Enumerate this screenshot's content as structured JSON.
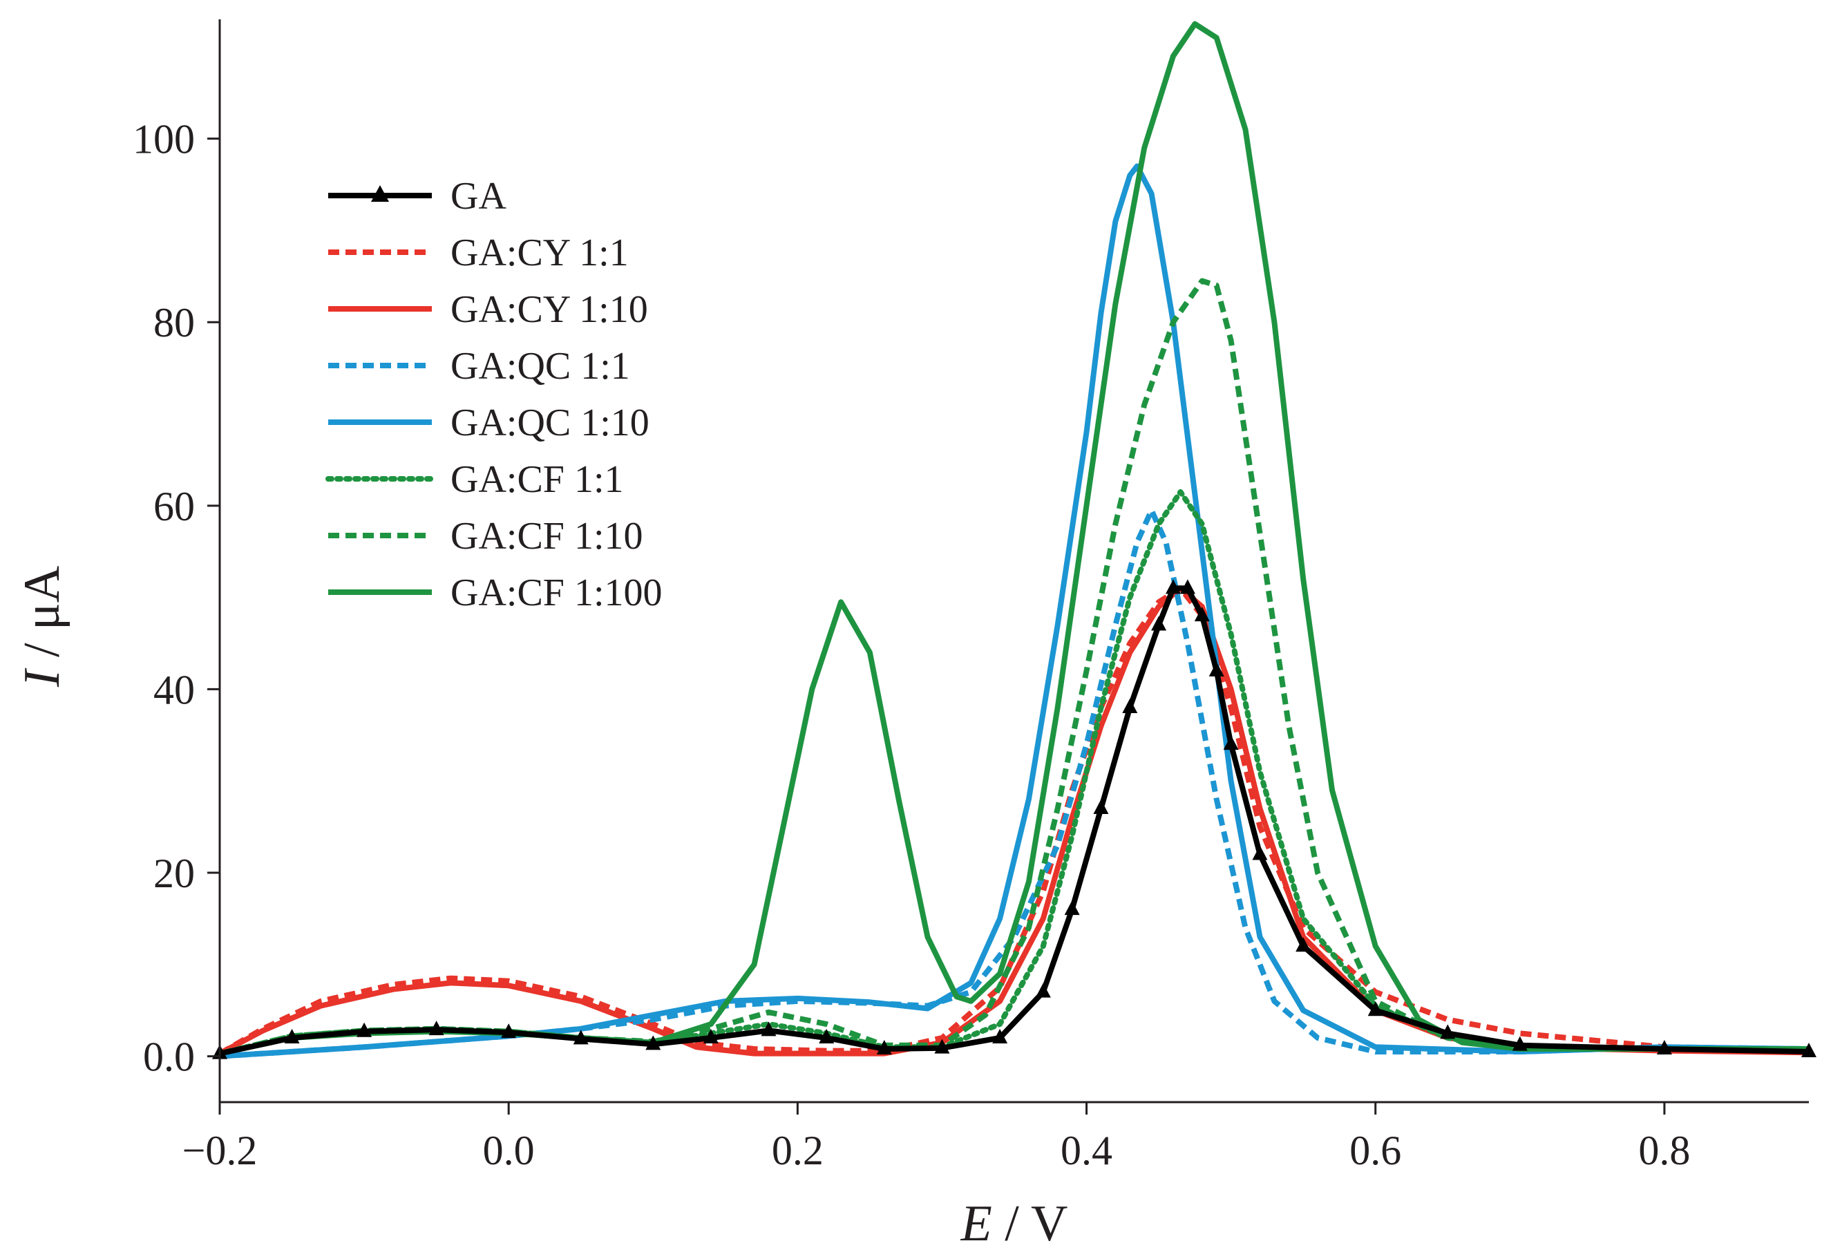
{
  "chart_data": {
    "type": "line",
    "title": "",
    "xlabel_var": "E",
    "xlabel_unit": " / V",
    "ylabel_var": "I",
    "ylabel_unit": " / μA",
    "xlim": [
      -0.2,
      0.9
    ],
    "ylim": [
      -5,
      113
    ],
    "x_ticks": [
      -0.2,
      0.0,
      0.2,
      0.4,
      0.6,
      0.8
    ],
    "x_tick_labels": [
      "−0.2",
      "0.0",
      "0.2",
      "0.4",
      "0.6",
      "0.8"
    ],
    "y_ticks": [
      0,
      20,
      40,
      60,
      80,
      100
    ],
    "y_tick_labels": [
      "0.0",
      "20",
      "40",
      "60",
      "80",
      "100"
    ],
    "grid": false,
    "legend_position": "top-left",
    "series": [
      {
        "name": "GA",
        "color": "#000000",
        "style": "solid",
        "marker": "triangle",
        "points": [
          [
            -0.2,
            0.3
          ],
          [
            -0.15,
            2.0
          ],
          [
            -0.1,
            2.7
          ],
          [
            -0.05,
            2.9
          ],
          [
            0.0,
            2.6
          ],
          [
            0.05,
            1.9
          ],
          [
            0.1,
            1.3
          ],
          [
            0.14,
            2.0
          ],
          [
            0.18,
            2.8
          ],
          [
            0.22,
            2.0
          ],
          [
            0.26,
            0.8
          ],
          [
            0.3,
            0.9
          ],
          [
            0.34,
            2.0
          ],
          [
            0.37,
            7.0
          ],
          [
            0.39,
            16.0
          ],
          [
            0.41,
            27.0
          ],
          [
            0.43,
            38.0
          ],
          [
            0.45,
            47.0
          ],
          [
            0.46,
            51.0
          ],
          [
            0.47,
            51.0
          ],
          [
            0.48,
            48.0
          ],
          [
            0.49,
            42.0
          ],
          [
            0.5,
            34.0
          ],
          [
            0.52,
            22.0
          ],
          [
            0.55,
            12.0
          ],
          [
            0.6,
            5.0
          ],
          [
            0.65,
            2.5
          ],
          [
            0.7,
            1.2
          ],
          [
            0.8,
            0.8
          ],
          [
            0.9,
            0.5
          ]
        ]
      },
      {
        "name": "GA:CY 1:1",
        "color": "#e8342a",
        "style": "dashed",
        "marker": "",
        "points": [
          [
            -0.2,
            0.3
          ],
          [
            -0.17,
            3.0
          ],
          [
            -0.13,
            6.0
          ],
          [
            -0.08,
            7.8
          ],
          [
            -0.04,
            8.5
          ],
          [
            0.0,
            8.2
          ],
          [
            0.05,
            6.5
          ],
          [
            0.1,
            3.5
          ],
          [
            0.13,
            1.5
          ],
          [
            0.17,
            0.8
          ],
          [
            0.22,
            0.6
          ],
          [
            0.26,
            0.6
          ],
          [
            0.3,
            2.0
          ],
          [
            0.34,
            7.5
          ],
          [
            0.37,
            18.0
          ],
          [
            0.39,
            29.0
          ],
          [
            0.41,
            38.0
          ],
          [
            0.43,
            45.0
          ],
          [
            0.45,
            49.5
          ],
          [
            0.465,
            51.0
          ],
          [
            0.48,
            48.0
          ],
          [
            0.5,
            38.0
          ],
          [
            0.52,
            25.0
          ],
          [
            0.55,
            14.0
          ],
          [
            0.6,
            7.0
          ],
          [
            0.65,
            4.0
          ],
          [
            0.7,
            2.5
          ],
          [
            0.8,
            1.0
          ],
          [
            0.9,
            0.5
          ]
        ]
      },
      {
        "name": "GA:CY 1:10",
        "color": "#e8342a",
        "style": "solid",
        "marker": "",
        "points": [
          [
            -0.2,
            0.3
          ],
          [
            -0.17,
            2.8
          ],
          [
            -0.13,
            5.5
          ],
          [
            -0.08,
            7.3
          ],
          [
            -0.04,
            8.0
          ],
          [
            0.0,
            7.7
          ],
          [
            0.05,
            6.0
          ],
          [
            0.1,
            3.0
          ],
          [
            0.13,
            1.0
          ],
          [
            0.17,
            0.3
          ],
          [
            0.22,
            0.3
          ],
          [
            0.26,
            0.3
          ],
          [
            0.3,
            1.5
          ],
          [
            0.34,
            6.0
          ],
          [
            0.37,
            15.0
          ],
          [
            0.39,
            26.0
          ],
          [
            0.41,
            36.0
          ],
          [
            0.43,
            44.0
          ],
          [
            0.45,
            49.0
          ],
          [
            0.465,
            51.0
          ],
          [
            0.48,
            49.0
          ],
          [
            0.5,
            40.0
          ],
          [
            0.52,
            27.0
          ],
          [
            0.55,
            13.0
          ],
          [
            0.6,
            5.0
          ],
          [
            0.65,
            2.0
          ],
          [
            0.7,
            1.0
          ],
          [
            0.8,
            0.6
          ],
          [
            0.9,
            0.4
          ]
        ]
      },
      {
        "name": "GA:QC 1:1",
        "color": "#1c95d3",
        "style": "dashed",
        "marker": "",
        "points": [
          [
            -0.2,
            0.0
          ],
          [
            -0.1,
            1.0
          ],
          [
            0.0,
            2.2
          ],
          [
            0.05,
            3.0
          ],
          [
            0.1,
            4.0
          ],
          [
            0.15,
            5.5
          ],
          [
            0.2,
            6.0
          ],
          [
            0.25,
            5.8
          ],
          [
            0.29,
            5.5
          ],
          [
            0.32,
            7.0
          ],
          [
            0.35,
            13.0
          ],
          [
            0.38,
            23.0
          ],
          [
            0.4,
            34.0
          ],
          [
            0.42,
            47.0
          ],
          [
            0.435,
            56.0
          ],
          [
            0.445,
            59.5
          ],
          [
            0.455,
            56.0
          ],
          [
            0.47,
            45.0
          ],
          [
            0.49,
            28.0
          ],
          [
            0.51,
            14.0
          ],
          [
            0.53,
            6.0
          ],
          [
            0.56,
            2.0
          ],
          [
            0.6,
            0.5
          ],
          [
            0.7,
            0.5
          ],
          [
            0.8,
            1.0
          ],
          [
            0.9,
            0.8
          ]
        ]
      },
      {
        "name": "GA:QC 1:10",
        "color": "#1c95d3",
        "style": "solid",
        "marker": "",
        "points": [
          [
            -0.2,
            0.0
          ],
          [
            -0.1,
            1.0
          ],
          [
            0.0,
            2.2
          ],
          [
            0.05,
            3.0
          ],
          [
            0.1,
            4.5
          ],
          [
            0.15,
            6.0
          ],
          [
            0.2,
            6.3
          ],
          [
            0.25,
            5.9
          ],
          [
            0.29,
            5.2
          ],
          [
            0.32,
            8.0
          ],
          [
            0.34,
            15.0
          ],
          [
            0.36,
            28.0
          ],
          [
            0.38,
            47.0
          ],
          [
            0.4,
            68.0
          ],
          [
            0.41,
            81.0
          ],
          [
            0.42,
            91.0
          ],
          [
            0.43,
            96.0
          ],
          [
            0.435,
            97.0
          ],
          [
            0.445,
            94.0
          ],
          [
            0.46,
            80.0
          ],
          [
            0.48,
            55.0
          ],
          [
            0.5,
            30.0
          ],
          [
            0.52,
            13.0
          ],
          [
            0.55,
            5.0
          ],
          [
            0.6,
            1.0
          ],
          [
            0.7,
            0.5
          ],
          [
            0.8,
            1.0
          ],
          [
            0.9,
            0.8
          ]
        ]
      },
      {
        "name": "GA:CF 1:1",
        "color": "#1e9441",
        "style": "dotted",
        "marker": "",
        "points": [
          [
            -0.2,
            0.3
          ],
          [
            -0.15,
            2.2
          ],
          [
            -0.1,
            2.8
          ],
          [
            -0.05,
            3.0
          ],
          [
            0.0,
            2.7
          ],
          [
            0.05,
            2.0
          ],
          [
            0.1,
            1.5
          ],
          [
            0.14,
            2.5
          ],
          [
            0.18,
            3.5
          ],
          [
            0.22,
            2.5
          ],
          [
            0.26,
            1.0
          ],
          [
            0.3,
            1.0
          ],
          [
            0.34,
            3.5
          ],
          [
            0.37,
            12.0
          ],
          [
            0.39,
            24.0
          ],
          [
            0.41,
            38.0
          ],
          [
            0.43,
            50.0
          ],
          [
            0.45,
            58.0
          ],
          [
            0.465,
            61.5
          ],
          [
            0.48,
            58.0
          ],
          [
            0.5,
            46.0
          ],
          [
            0.52,
            31.0
          ],
          [
            0.55,
            15.0
          ],
          [
            0.6,
            5.5
          ],
          [
            0.65,
            2.0
          ],
          [
            0.7,
            1.0
          ],
          [
            0.8,
            0.8
          ],
          [
            0.9,
            0.8
          ]
        ]
      },
      {
        "name": "GA:CF 1:10",
        "color": "#1e9441",
        "style": "dashed",
        "marker": "",
        "points": [
          [
            -0.2,
            0.3
          ],
          [
            -0.15,
            2.2
          ],
          [
            -0.1,
            2.8
          ],
          [
            -0.05,
            3.0
          ],
          [
            0.0,
            2.7
          ],
          [
            0.05,
            2.0
          ],
          [
            0.1,
            1.6
          ],
          [
            0.14,
            3.0
          ],
          [
            0.18,
            4.8
          ],
          [
            0.22,
            3.5
          ],
          [
            0.26,
            1.2
          ],
          [
            0.3,
            1.2
          ],
          [
            0.33,
            4.5
          ],
          [
            0.36,
            14.0
          ],
          [
            0.38,
            27.0
          ],
          [
            0.4,
            42.0
          ],
          [
            0.42,
            58.0
          ],
          [
            0.44,
            71.0
          ],
          [
            0.46,
            80.0
          ],
          [
            0.48,
            84.5
          ],
          [
            0.49,
            84.0
          ],
          [
            0.5,
            78.0
          ],
          [
            0.52,
            57.0
          ],
          [
            0.54,
            36.0
          ],
          [
            0.56,
            20.0
          ],
          [
            0.6,
            6.0
          ],
          [
            0.65,
            2.0
          ],
          [
            0.7,
            1.0
          ],
          [
            0.8,
            0.8
          ],
          [
            0.9,
            0.8
          ]
        ]
      },
      {
        "name": "GA:CF 1:100",
        "color": "#1e9441",
        "style": "solid",
        "marker": "",
        "points": [
          [
            -0.2,
            0.3
          ],
          [
            -0.15,
            2.0
          ],
          [
            -0.1,
            2.5
          ],
          [
            -0.05,
            2.7
          ],
          [
            0.0,
            2.5
          ],
          [
            0.05,
            2.0
          ],
          [
            0.1,
            1.5
          ],
          [
            0.14,
            3.5
          ],
          [
            0.17,
            10.0
          ],
          [
            0.19,
            25.0
          ],
          [
            0.21,
            40.0
          ],
          [
            0.23,
            49.5
          ],
          [
            0.25,
            44.0
          ],
          [
            0.27,
            28.0
          ],
          [
            0.29,
            13.0
          ],
          [
            0.31,
            6.5
          ],
          [
            0.32,
            6.0
          ],
          [
            0.34,
            9.0
          ],
          [
            0.36,
            19.0
          ],
          [
            0.38,
            38.0
          ],
          [
            0.4,
            60.0
          ],
          [
            0.42,
            82.0
          ],
          [
            0.44,
            99.0
          ],
          [
            0.46,
            109.0
          ],
          [
            0.475,
            112.5
          ],
          [
            0.49,
            111.0
          ],
          [
            0.51,
            101.0
          ],
          [
            0.53,
            80.0
          ],
          [
            0.55,
            52.0
          ],
          [
            0.57,
            29.0
          ],
          [
            0.6,
            12.0
          ],
          [
            0.63,
            4.0
          ],
          [
            0.66,
            1.5
          ],
          [
            0.7,
            0.8
          ],
          [
            0.8,
            0.8
          ],
          [
            0.9,
            0.8
          ]
        ]
      }
    ]
  }
}
